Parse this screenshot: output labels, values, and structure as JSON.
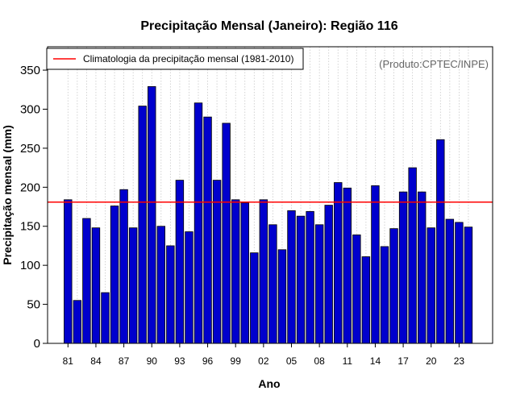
{
  "chart_data": {
    "type": "bar",
    "title": "Precipitação Mensal (Janeiro): Região 116",
    "xlabel": "Ano",
    "ylabel": "Precipitação mensal (mm)",
    "source_note": "(Produto:CPTEC/INPE)",
    "ylim": [
      0,
      380
    ],
    "yticks": [
      0,
      50,
      100,
      150,
      200,
      250,
      300,
      350
    ],
    "grid": "vertical dotted",
    "legend_position": "top-left",
    "categories": [
      "81",
      "82",
      "83",
      "84",
      "85",
      "86",
      "87",
      "88",
      "89",
      "90",
      "91",
      "92",
      "93",
      "94",
      "95",
      "96",
      "97",
      "98",
      "99",
      "00",
      "01",
      "02",
      "03",
      "04",
      "05",
      "06",
      "07",
      "08",
      "09",
      "10",
      "11",
      "12",
      "13",
      "14",
      "15",
      "16",
      "17",
      "18",
      "19",
      "20",
      "21",
      "22",
      "23",
      "24"
    ],
    "xtick_labels": [
      "81",
      "84",
      "87",
      "90",
      "93",
      "96",
      "99",
      "02",
      "05",
      "08",
      "11",
      "14",
      "17",
      "20",
      "23"
    ],
    "series": [
      {
        "name": "Precipitação mensal",
        "color": "#0000CD",
        "values": [
          184,
          55,
          160,
          148,
          65,
          176,
          197,
          148,
          304,
          329,
          150,
          125,
          209,
          143,
          308,
          290,
          209,
          282,
          184,
          180,
          116,
          184,
          152,
          120,
          170,
          163,
          169,
          152,
          177,
          206,
          199,
          139,
          111,
          202,
          124,
          147,
          194,
          225,
          194,
          148,
          261,
          159,
          155,
          149
        ]
      }
    ],
    "reference_line": {
      "label": "Climatologia da precipitação mensal (1981-2010)",
      "value": 181,
      "color": "#FF0000"
    }
  }
}
